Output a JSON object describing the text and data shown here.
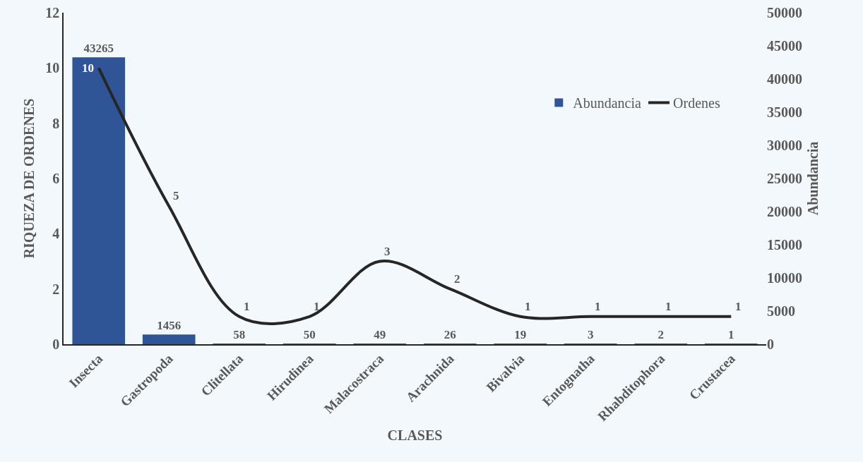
{
  "chart_data": {
    "type": "bar",
    "xlabel": "CLASES",
    "ylabel": "RIQUEZA DE ORDENES",
    "y2label": "Abundancia",
    "categories": [
      "Insecta",
      "Gastropoda",
      "Clitellata",
      "Hirudinea",
      "Malacostraca",
      "Arachnida",
      "Bivalvia",
      "Entognatha",
      "Rhabditophora",
      "Crustacea"
    ],
    "series": [
      {
        "name": "Abundancia",
        "axis": "y2",
        "color": "#2f5597",
        "values": [
          43265,
          1456,
          58,
          50,
          49,
          26,
          19,
          3,
          2,
          1
        ]
      },
      {
        "name": "Ordenes",
        "type": "line",
        "color": "#262626",
        "values": [
          10,
          5,
          1,
          1,
          3,
          2,
          1,
          1,
          1,
          1
        ]
      }
    ],
    "ylim": [
      0,
      12
    ],
    "yticks": [
      0,
      2,
      4,
      6,
      8,
      10,
      12
    ],
    "y2lim": [
      0,
      50000
    ],
    "y2ticks": [
      0,
      5000,
      10000,
      15000,
      20000,
      25000,
      30000,
      35000,
      40000,
      45000,
      50000
    ],
    "data_labels": true,
    "grid": false,
    "legend": "top right"
  }
}
